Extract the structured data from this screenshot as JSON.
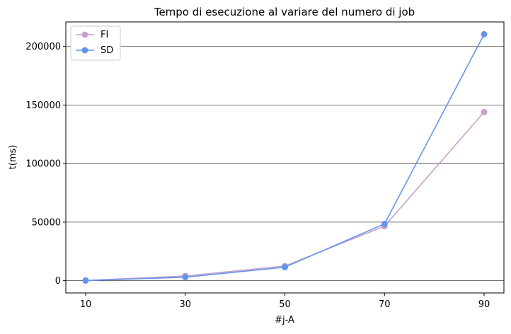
{
  "chart_data": {
    "type": "line",
    "title": "Tempo di esecuzione al variare del numero di job",
    "xlabel": "#j-A",
    "ylabel": "t(ms)",
    "x": [
      10,
      30,
      50,
      70,
      90
    ],
    "x_ticks": [
      "10",
      "30",
      "50",
      "70",
      "90"
    ],
    "y_ticks": [
      0,
      50000,
      100000,
      150000,
      200000
    ],
    "y_tick_labels": [
      "0",
      "50000",
      "100000",
      "150000",
      "200000"
    ],
    "ylim": [
      -10500,
      221000
    ],
    "grid": "horizontal",
    "legend": "top-left",
    "series": [
      {
        "name": "FI",
        "color": "#C8A2C8",
        "values": [
          200,
          4000,
          12500,
          46500,
          144000
        ]
      },
      {
        "name": "SD",
        "color": "#6495ED",
        "values": [
          100,
          3000,
          11500,
          48500,
          210500
        ]
      }
    ]
  }
}
